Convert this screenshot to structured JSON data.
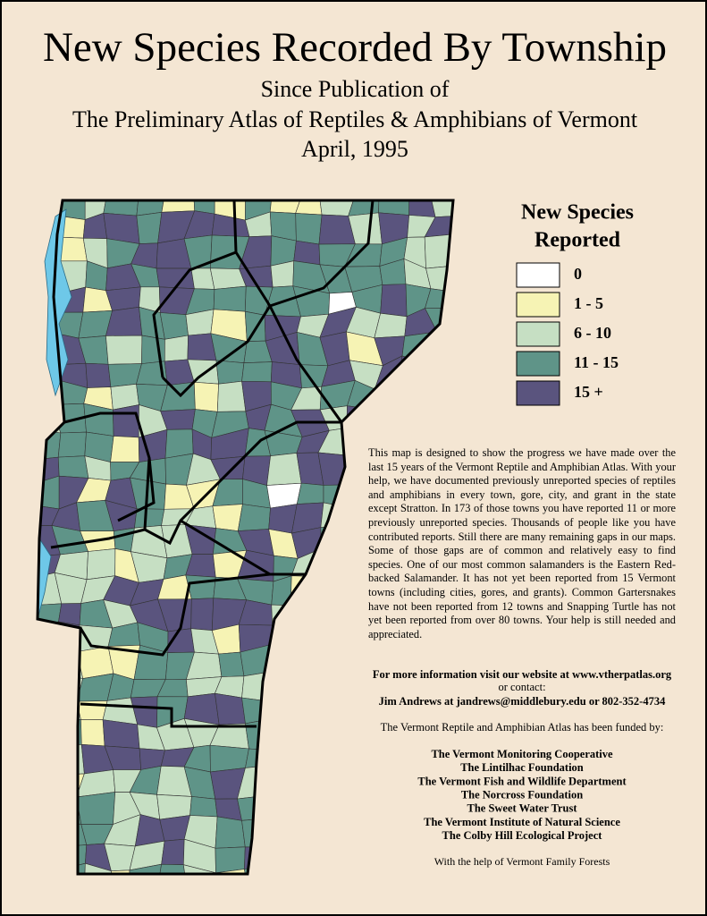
{
  "header": {
    "title": "New Species Recorded By Township",
    "subtitle_lines": [
      "Since Publication of",
      "The Preliminary Atlas of Reptiles & Amphibians of Vermont",
      "April, 1995"
    ]
  },
  "legend": {
    "title_lines": [
      "New Species",
      "Reported"
    ],
    "items": [
      {
        "label": "0",
        "color": "#ffffff"
      },
      {
        "label": "1 - 5",
        "color": "#f6f3b4"
      },
      {
        "label": "6 - 10",
        "color": "#c6dfc3"
      },
      {
        "label": "11 - 15",
        "color": "#5f9488"
      },
      {
        "label": "15 +",
        "color": "#5a547e"
      }
    ]
  },
  "description": "This map is designed to show the progress we have made over the last 15 years of the Vermont Reptile and Amphibian Atlas.  With your help, we have documented previously unreported species of reptiles and amphibians in every town, gore, city, and grant in the state except Stratton.  In 173 of those towns you have reported 11 or more previously unreported species.  Thousands of people like you have contributed reports.  Still there are many remaining gaps in our maps.  Some of those gaps are of common and relatively easy to find species.  One of our most common salamanders is the Eastern Red-backed Salamander.  It has not yet been reported from 15 Vermont towns (including cities, gores, and grants).  Common Gartersnakes have not been reported from 12 towns and Snapping Turtle has not yet been reported from over 80 towns.  Your help is still needed and appreciated.",
  "contact": {
    "website": "For more information visit our website at www.vtherpatlas.org",
    "or": "or contact:",
    "person": "Jim Andrews at jandrews@middlebury.edu or 802-352-4734"
  },
  "funding": {
    "intro": "The Vermont Reptile and Amphibian Atlas has been funded by:",
    "funders": [
      "The Vermont Monitoring Cooperative",
      "The Lintilhac Foundation",
      "The Vermont Fish and Wildlife Department",
      "The Norcross Foundation",
      "The Sweet Water Trust",
      "The Vermont Institute of Natural Science",
      "The Colby Hill Ecological Project"
    ],
    "footer": "With the help of Vermont Family Forests"
  }
}
